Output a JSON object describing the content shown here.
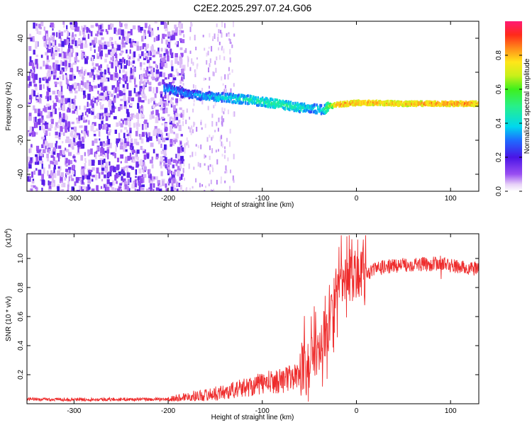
{
  "title": "C2E2.2025.297.07.24.G06",
  "chart_data": [
    {
      "type": "heatmap",
      "title": "C2E2.2025.297.07.24.G06",
      "xlabel": "Height of straight line (km)",
      "ylabel": "Frequency (Hz)",
      "xlim": [
        -350,
        130
      ],
      "ylim": [
        -50,
        50
      ],
      "xticks": [
        -300,
        -200,
        -100,
        0,
        100
      ],
      "yticks": [
        -40,
        -20,
        0,
        20,
        40
      ],
      "colorbar": {
        "label": "Normalized spectral amplitude",
        "range": [
          0,
          1
        ],
        "ticks": [
          "0.0",
          "0.2",
          "0.4",
          "0.6",
          "0.8"
        ],
        "tick_values": [
          0.0,
          0.2,
          0.4,
          0.6,
          0.8
        ]
      },
      "ridge": {
        "x": [
          -200,
          -180,
          -160,
          -140,
          -120,
          -100,
          -80,
          -60,
          -50,
          -40,
          -35,
          -30,
          -20,
          0,
          20,
          50,
          80,
          100,
          130
        ],
        "freq": [
          10,
          7,
          6,
          5,
          4,
          2.5,
          1,
          -1,
          -1,
          -2,
          -2,
          0,
          1,
          2,
          2,
          1.5,
          1.5,
          1.5,
          1.5
        ],
        "amplitude": [
          0.35,
          0.32,
          0.38,
          0.42,
          0.45,
          0.48,
          0.5,
          0.45,
          0.4,
          0.42,
          0.45,
          0.62,
          0.85,
          0.85,
          0.82,
          0.8,
          0.85,
          0.85,
          0.85
        ]
      }
    },
    {
      "type": "line",
      "xlabel": "Height of straight line (km)",
      "ylabel": "SNR (10 * v/v)",
      "scale_label": "(x10",
      "scale_exp": "4",
      "xlim": [
        -350,
        130
      ],
      "ylim": [
        0,
        1.17
      ],
      "xticks": [
        -300,
        -200,
        -100,
        0,
        100
      ],
      "yticks": [
        "0.2",
        "0.4",
        "0.6",
        "0.8",
        "1.0"
      ],
      "ytick_values": [
        0.2,
        0.4,
        0.6,
        0.8,
        1.0
      ],
      "series": [
        {
          "name": "SNR",
          "color": "#ee2b2b",
          "x": [
            -350,
            -300,
            -250,
            -200,
            -180,
            -160,
            -140,
            -120,
            -100,
            -80,
            -60,
            -50,
            -40,
            -30,
            -25,
            -20,
            -10,
            0,
            10,
            20,
            40,
            60,
            80,
            90,
            95,
            100,
            110,
            120,
            130
          ],
          "y": [
            0.03,
            0.03,
            0.03,
            0.03,
            0.05,
            0.06,
            0.08,
            0.11,
            0.14,
            0.16,
            0.2,
            0.25,
            0.38,
            0.5,
            0.65,
            0.78,
            0.82,
            0.85,
            0.89,
            0.93,
            0.95,
            0.96,
            0.96,
            0.97,
            0.96,
            0.95,
            0.94,
            0.93,
            0.93
          ]
        }
      ]
    }
  ]
}
